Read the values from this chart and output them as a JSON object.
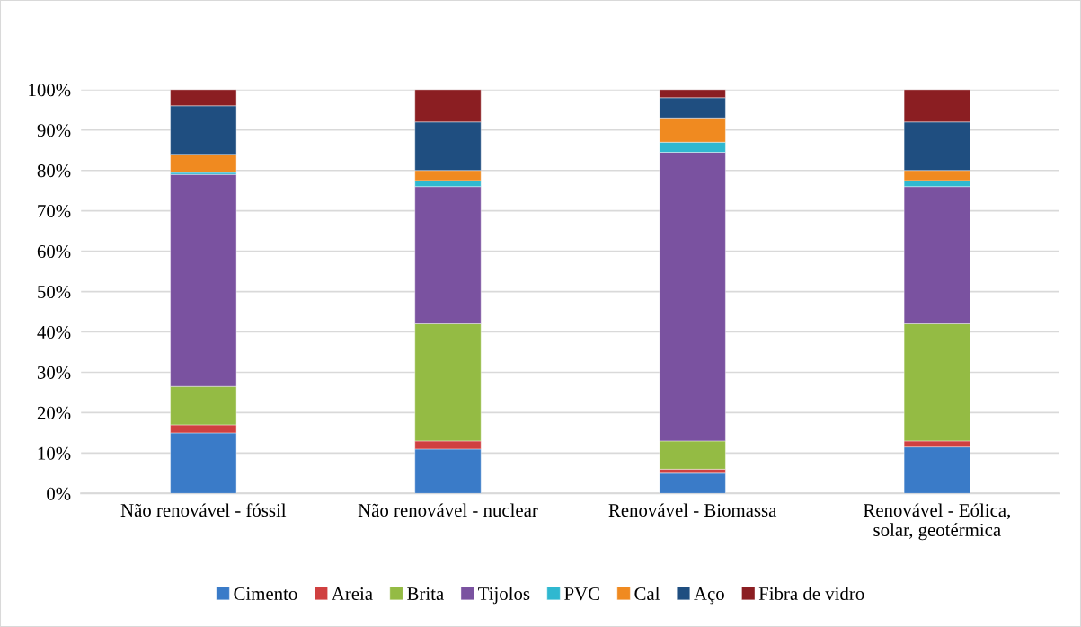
{
  "chart_data": {
    "type": "bar",
    "stacked": true,
    "categories": [
      "Não renovável - fóssil",
      "Não renovável - nuclear",
      "Renovável - Biomassa",
      "Renovável - Eólica,\nsolar, geotérmica"
    ],
    "series": [
      {
        "name": "Cimento",
        "color": "#3a7bc8",
        "values": [
          15,
          11,
          5,
          11.5
        ]
      },
      {
        "name": "Areia",
        "color": "#d04040",
        "values": [
          2,
          2,
          1,
          1.5
        ]
      },
      {
        "name": "Brita",
        "color": "#94bb44",
        "values": [
          9.5,
          29,
          7,
          29
        ]
      },
      {
        "name": "Tijolos",
        "color": "#7a52a0",
        "values": [
          52.5,
          34,
          71.5,
          34
        ]
      },
      {
        "name": "PVC",
        "color": "#2fb8d0",
        "values": [
          0.5,
          1.5,
          2.5,
          1.5
        ]
      },
      {
        "name": "Cal",
        "color": "#f08a20",
        "values": [
          4.5,
          2.5,
          6,
          2.5
        ]
      },
      {
        "name": "Aço",
        "color": "#1f4e80",
        "values": [
          12,
          12,
          5,
          12
        ]
      },
      {
        "name": "Fibra de vidro",
        "color": "#8b1e22",
        "values": [
          4,
          8,
          2,
          8
        ]
      }
    ],
    "ylim": [
      0,
      100
    ],
    "yticks": [
      {
        "value": 0,
        "label": "0%"
      },
      {
        "value": 10,
        "label": "10%"
      },
      {
        "value": 20,
        "label": "20%"
      },
      {
        "value": 30,
        "label": "30%"
      },
      {
        "value": 40,
        "label": "40%"
      },
      {
        "value": 50,
        "label": "50%"
      },
      {
        "value": 60,
        "label": "60%"
      },
      {
        "value": 70,
        "label": "70%"
      },
      {
        "value": 80,
        "label": "80%"
      },
      {
        "value": 90,
        "label": "90%"
      },
      {
        "value": 100,
        "label": "100%"
      }
    ],
    "grid": "y",
    "legend": "bottom"
  }
}
